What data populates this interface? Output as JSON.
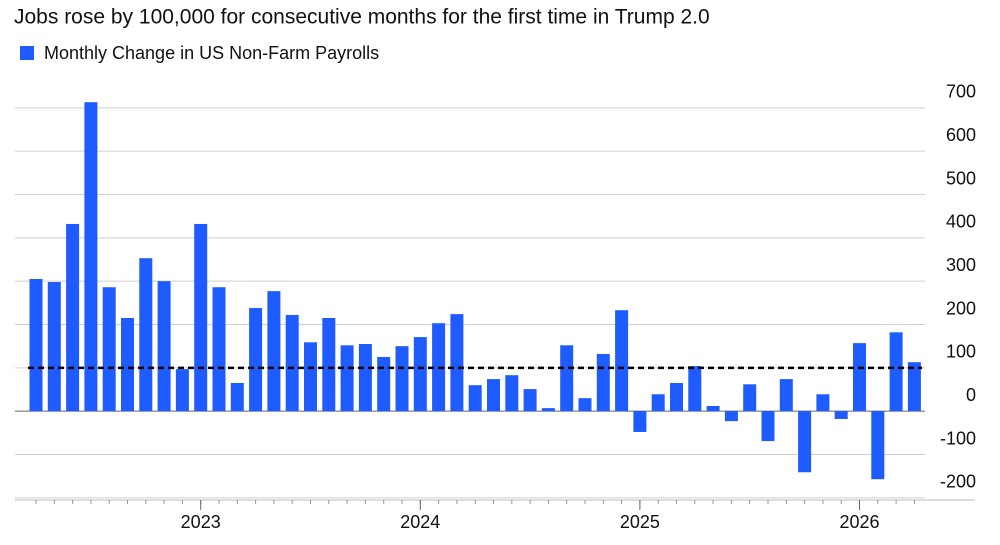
{
  "chart_data": {
    "type": "bar",
    "title": "Jobs rose by 100,000 for consecutive months for the first time in Trump 2.0",
    "categories": [
      null,
      null,
      null,
      null,
      null,
      null,
      null,
      null,
      null,
      "2023",
      null,
      null,
      null,
      null,
      null,
      null,
      null,
      null,
      null,
      null,
      null,
      "2024",
      null,
      null,
      null,
      null,
      null,
      null,
      null,
      null,
      null,
      null,
      null,
      "2025",
      null,
      null,
      null,
      null,
      null,
      null,
      null,
      null,
      null,
      null,
      null,
      "2026",
      null,
      null,
      null
    ],
    "series": [
      {
        "name": "Monthly Change in US Non-Farm Payrolls",
        "color": "#1f5cff",
        "values": [
          305,
          298,
          432,
          713,
          286,
          215,
          353,
          300,
          97,
          432,
          286,
          65,
          238,
          277,
          222,
          159,
          215,
          152,
          155,
          125,
          150,
          171,
          203,
          224,
          60,
          74,
          83,
          51,
          7,
          152,
          30,
          132,
          233,
          -48,
          39,
          65,
          104,
          12,
          -23,
          62,
          -69,
          74,
          -141,
          39,
          -18,
          157,
          -157,
          182,
          113
        ]
      }
    ],
    "reference_line": 100,
    "ylim": [
      -205,
      710
    ],
    "yticks": [
      -200,
      -100,
      0,
      100,
      200,
      300,
      400,
      500,
      600,
      700
    ],
    "grid": true,
    "legend": "top-left"
  }
}
